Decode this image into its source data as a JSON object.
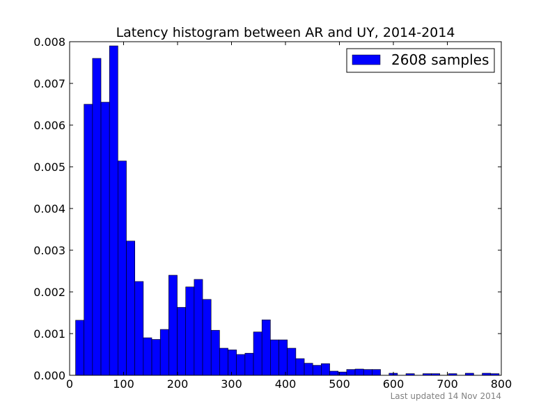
{
  "chart_data": {
    "type": "bar",
    "title": "Latency histogram between AR and UY, 2014-2014",
    "xlabel": "",
    "ylabel": "",
    "xlim": [
      0,
      800
    ],
    "ylim": [
      0,
      0.008
    ],
    "x_ticks": [
      "0",
      "100",
      "200",
      "300",
      "400",
      "500",
      "600",
      "700",
      "800"
    ],
    "y_ticks": [
      "0.000",
      "0.001",
      "0.002",
      "0.003",
      "0.004",
      "0.005",
      "0.006",
      "0.007",
      "0.008"
    ],
    "grid": false,
    "legend_position": "top-right",
    "series": [
      {
        "name": "2608 samples",
        "color": "#0000ff",
        "bin_width": 15.7,
        "bin_starts": [
          11,
          26.7,
          42.4,
          58.1,
          73.8,
          89.5,
          105.2,
          120.9,
          136.6,
          152.3,
          168,
          183.7,
          199.4,
          215.1,
          230.8,
          246.5,
          262.2,
          277.9,
          293.6,
          309.3,
          325,
          340.7,
          356.4,
          372.1,
          387.8,
          403.5,
          419.2,
          434.9,
          450.6,
          466.3,
          482,
          497.7,
          513.4,
          529.1,
          544.8,
          560.5,
          576.2,
          591.9,
          607.6,
          623.3,
          639,
          654.7,
          670.4,
          686.1,
          701.8,
          717.5,
          733.2,
          748.9,
          764.6,
          780.3
        ],
        "values": [
          0.00132,
          0.0065,
          0.0076,
          0.00655,
          0.0079,
          0.00514,
          0.00322,
          0.00225,
          0.0009,
          0.00086,
          0.0011,
          0.0024,
          0.00163,
          0.00212,
          0.0023,
          0.00182,
          0.00108,
          0.00065,
          0.00061,
          0.0005,
          0.00053,
          0.00104,
          0.00133,
          0.00085,
          0.00085,
          0.00065,
          0.0004,
          0.00029,
          0.00024,
          0.00028,
          0.0001,
          8e-05,
          0.00014,
          0.00015,
          0.00014,
          0.00014,
          0.0,
          5e-05,
          0.0,
          4e-05,
          0.0,
          4e-05,
          4e-05,
          0.0,
          4e-05,
          0.0,
          5e-05,
          0.0,
          5e-05,
          4e-05
        ]
      }
    ],
    "footnote": "Last updated 14 Nov 2014"
  }
}
